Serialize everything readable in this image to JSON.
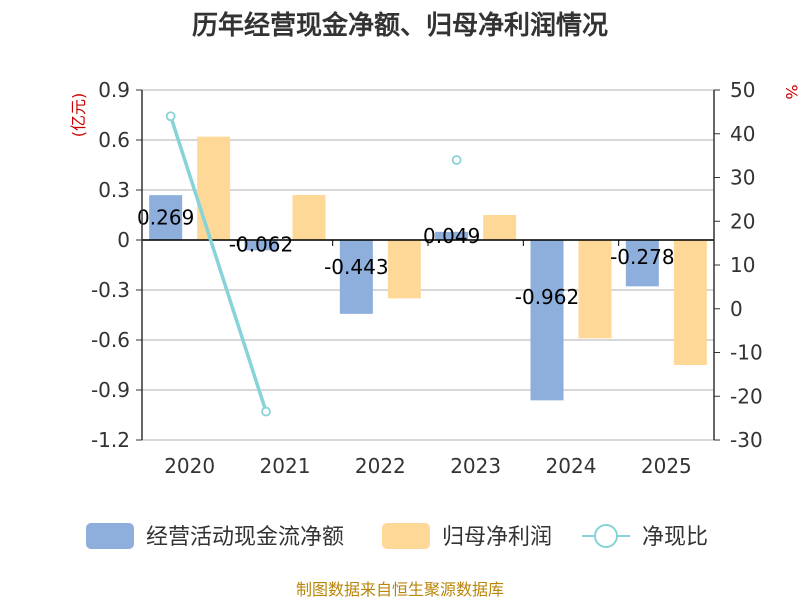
{
  "title": "历年经营现金净额、归母净利润情况",
  "chart_data": {
    "type": "bar",
    "categories": [
      "2020",
      "2021",
      "2022",
      "2023",
      "2024",
      "2025"
    ],
    "series": [
      {
        "name": "经营活动现金流净额",
        "type": "bar",
        "axis": "left",
        "color": "#8eaedb",
        "values": [
          0.269,
          -0.062,
          -0.443,
          0.049,
          -0.962,
          -0.278
        ],
        "labels": [
          "0.269",
          "-0.062",
          "-0.443",
          "0.049",
          "-0.962",
          "-0.278"
        ]
      },
      {
        "name": "归母净利润",
        "type": "bar",
        "axis": "left",
        "color": "#fed896",
        "values": [
          0.62,
          0.27,
          -0.35,
          0.15,
          -0.59,
          -0.75
        ]
      },
      {
        "name": "净现比",
        "type": "line",
        "axis": "right",
        "color": "#86d3d8",
        "values": [
          44,
          -23.5,
          null,
          34,
          null,
          null
        ]
      }
    ],
    "y_left": {
      "unit": "(亿元)",
      "ylim": [
        -1.2,
        0.9
      ],
      "ticks": [
        "0.9",
        "0.6",
        "0.3",
        "0",
        "-0.3",
        "-0.6",
        "-0.9",
        "-1.2"
      ]
    },
    "y_right": {
      "unit": "%",
      "ylim": [
        -30,
        50
      ],
      "ticks": [
        "50",
        "40",
        "30",
        "20",
        "10",
        "0",
        "-10",
        "-20",
        "-30"
      ]
    },
    "legend": [
      "经营活动现金流净额",
      "归母净利润",
      "净现比"
    ],
    "legend_position": "bottom",
    "grid": true
  },
  "source": "制图数据来自恒生聚源数据库"
}
